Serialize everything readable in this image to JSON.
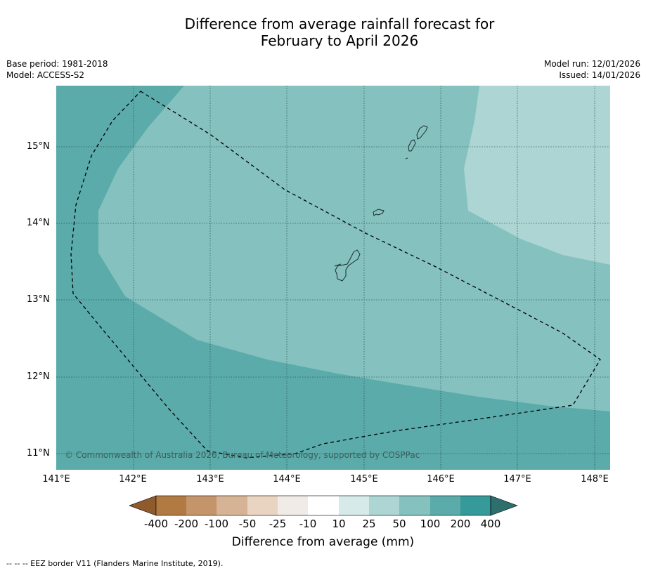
{
  "title": {
    "line1": "Difference from average rainfall forecast for",
    "line2": "February to April 2026"
  },
  "meta": {
    "base_period": "Base period: 1981-2018",
    "model": "Model: ACCESS-S2",
    "model_run": "Model run: 12/01/2026",
    "issued": "Issued: 14/01/2026"
  },
  "map": {
    "lat_labels": [
      "15°N",
      "14°N",
      "13°N",
      "12°N",
      "11°N"
    ],
    "lon_labels": [
      "141°E",
      "142°E",
      "143°E",
      "144°E",
      "145°E",
      "146°E",
      "147°E",
      "148°E"
    ],
    "copyright": "© Commonwealth of Australia 2026, Bureau of Meteorology, supported by COSPPac",
    "colors": {
      "band_100_200": "#5aabaa",
      "band_50_100": "#84c1bf",
      "band_25_50": "#acd5d4",
      "coast": "#1c2b2b",
      "eez": "#000000"
    }
  },
  "colorbar": {
    "title": "Difference from average (mm)",
    "tick_labels": [
      "-400",
      "-200",
      "-100",
      "-50",
      "-25",
      "-10",
      "10",
      "25",
      "50",
      "100",
      "200",
      "400"
    ],
    "colors": [
      "#8f5a2c",
      "#b07a42",
      "#c4946a",
      "#d6b394",
      "#e8d4c1",
      "#f0ebe6",
      "#ffffff",
      "#d6ebe9",
      "#acd5d4",
      "#84c1bf",
      "#5aabaa",
      "#36999a",
      "#2d6f6c"
    ]
  },
  "footnote": "--  --  -- EEZ border V11 (Flanders Marine Institute, 2019)."
}
